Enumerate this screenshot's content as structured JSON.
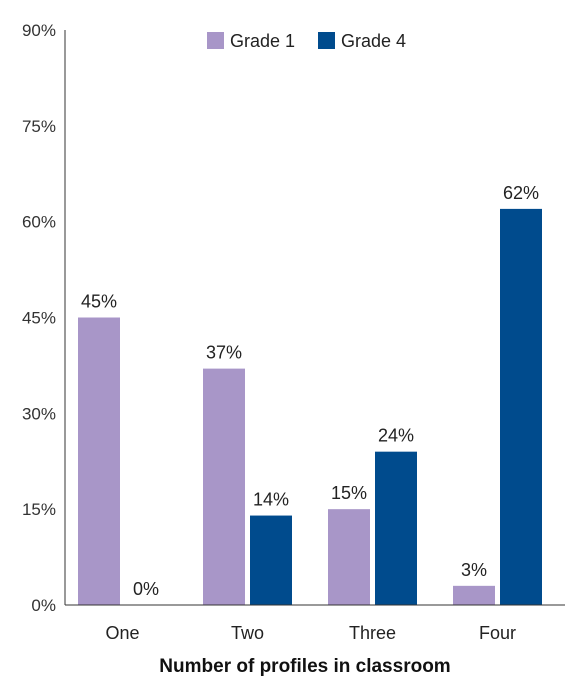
{
  "chart_data": {
    "type": "bar",
    "title": "",
    "xlabel": "Number of profiles in classroom",
    "ylabel": "",
    "categories": [
      "One",
      "Two",
      "Three",
      "Four"
    ],
    "series": [
      {
        "name": "Grade 1",
        "values": [
          45,
          37,
          15,
          3
        ],
        "labels": [
          "45%",
          "37%",
          "15%",
          "3%"
        ],
        "color": "#a896c8"
      },
      {
        "name": "Grade 4",
        "values": [
          0,
          14,
          24,
          62
        ],
        "labels": [
          "0%",
          "14%",
          "24%",
          "62%"
        ],
        "color": "#004b8d"
      }
    ],
    "ylim": [
      0,
      90
    ],
    "yticks": [
      0,
      15,
      30,
      45,
      60,
      75,
      90
    ],
    "ytick_labels": [
      "0%",
      "15%",
      "30%",
      "45%",
      "60%",
      "75%",
      "90%"
    ],
    "grid": false,
    "legend_position": "top-center"
  }
}
